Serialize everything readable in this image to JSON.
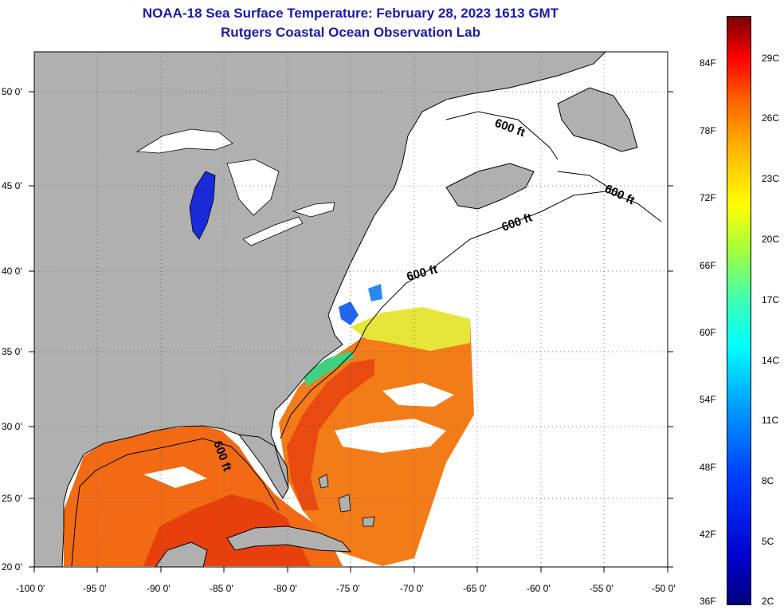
{
  "title": {
    "line1": "NOAA-18 Sea Surface Temperature:  February 28, 2023 1613 GMT",
    "line2": "Rutgers Coastal Ocean Observation Lab"
  },
  "map": {
    "lat_labels": [
      "50 0'",
      "45 0'",
      "40 0'",
      "35 0'",
      "30 0'",
      "25 0'",
      "20 0'"
    ],
    "lon_labels": [
      "-100 0'",
      "-95 0'",
      "-90 0'",
      "-85 0'",
      "-80 0'",
      "-75 0'",
      "-70 0'",
      "-65 0'",
      "-60 0'",
      "-55 0'",
      "-50 0'"
    ],
    "contour_label": "600 ft",
    "colors": {
      "land": "#b0b0b0",
      "cloud": "#ffffff",
      "warm": "#ff6a10",
      "cool": "#1040ff"
    }
  },
  "colorbar": {
    "fahrenheit": [
      "84F",
      "78F",
      "72F",
      "66F",
      "60F",
      "54F",
      "48F",
      "42F",
      "36F"
    ],
    "celsius": [
      "29C",
      "26C",
      "23C",
      "20C",
      "17C",
      "14C",
      "11C",
      "8C",
      "5C",
      "2C"
    ]
  }
}
